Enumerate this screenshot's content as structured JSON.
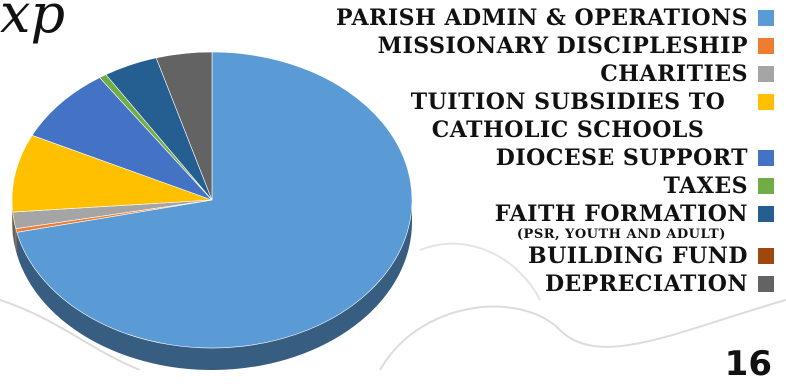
{
  "title_fragment": "xp",
  "page_number": "16",
  "chart_data": {
    "type": "pie",
    "title": "",
    "legend_position": "right",
    "slices": [
      {
        "label": "Parish Admin & Operations",
        "value": 71.5,
        "color": "#5b9bd5"
      },
      {
        "label": "Missionary Discipleship",
        "value": 0.4,
        "color": "#ed7d31"
      },
      {
        "label": "Charities",
        "value": 1.8,
        "color": "#a5a5a5"
      },
      {
        "label": "Tuition Subsidies to Catholic Schools",
        "value": 8.5,
        "color": "#ffc000"
      },
      {
        "label": "Diocese Support",
        "value": 8.3,
        "color": "#4472c4"
      },
      {
        "label": "Taxes",
        "value": 0.6,
        "color": "#70ad47"
      },
      {
        "label": "Faith Formation",
        "sublabel": "(PSR, Youth and Adult)",
        "value": 4.4,
        "color": "#255e91"
      },
      {
        "label": "Building Fund",
        "value": 0.0,
        "color": "#9e480e"
      },
      {
        "label": "Depreciation",
        "value": 4.5,
        "color": "#636363"
      }
    ]
  }
}
